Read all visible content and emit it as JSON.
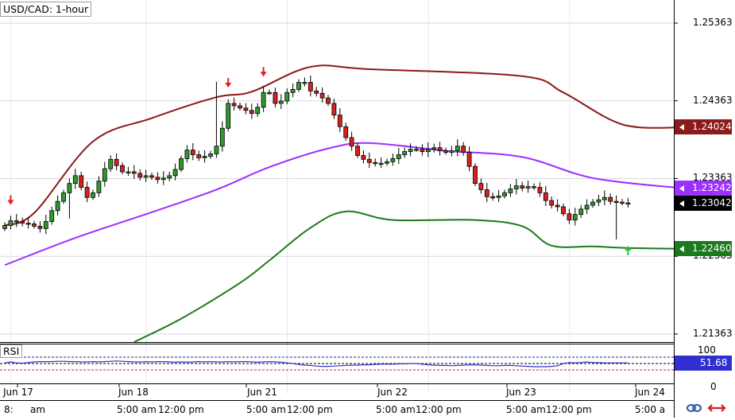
{
  "title": "USD/CAD: 1-hour",
  "rsi_label": "RSI",
  "price_axis": {
    "ticks": [
      "1.25363",
      "1.24363",
      "1.23363",
      "1.22363",
      "1.21363"
    ],
    "tick_values": [
      1.25363,
      1.24363,
      1.23363,
      1.22363,
      1.21363
    ]
  },
  "rsi_axis": {
    "ticks": [
      "100",
      "0"
    ],
    "value_label": "51.68"
  },
  "date_labels": [
    "Jun 17",
    "Jun 18",
    "Jun 21",
    "Jun 22",
    "Jun 23",
    "Jun 24"
  ],
  "time_labels": [
    "8:",
    "am",
    "5:00 am",
    "12:00 pm",
    "5:00 am",
    "12:00 pm",
    "5:00 am",
    "12:00 pm",
    "5:00 am",
    "12:00 pm",
    "5:00 a"
  ],
  "price_tags": [
    {
      "name": "upper-band",
      "label": "1.24024",
      "value": 1.24024,
      "color": "#8b1a1a"
    },
    {
      "name": "middle-band",
      "label": "1.23242",
      "value": 1.23242,
      "color": "#9b30ff"
    },
    {
      "name": "last-price",
      "label": "1.23042",
      "value": 1.23042,
      "color": "#000000"
    },
    {
      "name": "lower-band",
      "label": "1.22460",
      "value": 1.2246,
      "color": "#1b7a1b"
    }
  ],
  "colors": {
    "bull_candle": "#2e9a2e",
    "bear_candle": "#d82020",
    "upper_band": "#8b1a1a",
    "middle_band": "#9b30ff",
    "lower_band": "#1b7a1b",
    "rsi_line": "#3030d0",
    "rsi_levels": "#1a1a8f",
    "rsi_mid": "#d02020",
    "signal_down": "#e02020",
    "signal_up": "#20c040",
    "grid": "#d9d9d9"
  },
  "chart_data": {
    "type": "candlestick",
    "instrument": "USD/CAD",
    "timeframe": "1-hour",
    "ylim": [
      1.2126,
      1.2566
    ],
    "x_axis": [
      "Jun 17",
      "Jun 18",
      "Jun 21",
      "Jun 22",
      "Jun 23",
      "Jun 24"
    ],
    "candle_closes": [
      1.2276,
      1.2282,
      1.2281,
      1.2279,
      1.2278,
      1.2275,
      1.2272,
      1.2281,
      1.2295,
      1.2307,
      1.2318,
      1.233,
      1.234,
      1.2325,
      1.2312,
      1.2318,
      1.2333,
      1.2349,
      1.2361,
      1.2353,
      1.2345,
      1.2345,
      1.2343,
      1.2338,
      1.234,
      1.2338,
      1.2335,
      1.2337,
      1.234,
      1.2348,
      1.2362,
      1.2373,
      1.2367,
      1.2363,
      1.2365,
      1.2368,
      1.2378,
      1.2401,
      1.2433,
      1.243,
      1.2427,
      1.2424,
      1.242,
      1.2428,
      1.2447,
      1.2447,
      1.2433,
      1.2436,
      1.2447,
      1.2451,
      1.246,
      1.246,
      1.2449,
      1.2446,
      1.244,
      1.2433,
      1.2418,
      1.2403,
      1.2389,
      1.2378,
      1.2366,
      1.2361,
      1.2357,
      1.2356,
      1.2356,
      1.2358,
      1.2362,
      1.2367,
      1.2371,
      1.2374,
      1.2374,
      1.2371,
      1.2374,
      1.2376,
      1.2372,
      1.237,
      1.2372,
      1.2378,
      1.237,
      1.2352,
      1.233,
      1.2322,
      1.2313,
      1.2312,
      1.2314,
      1.2318,
      1.2323,
      1.2327,
      1.2324,
      1.2326,
      1.2325,
      1.2318,
      1.2308,
      1.2302,
      1.23,
      1.2291,
      1.2283,
      1.229,
      1.2297,
      1.2302,
      1.2306,
      1.2309,
      1.2312,
      1.2307,
      1.2306,
      1.2305,
      1.2304
    ],
    "upper_band_points": [
      [
        0,
        1.2276
      ],
      [
        5,
        1.2292
      ],
      [
        15,
        1.2384
      ],
      [
        25,
        1.2414
      ],
      [
        36,
        1.2441
      ],
      [
        42,
        1.2448
      ],
      [
        52,
        1.248
      ],
      [
        62,
        1.2477
      ],
      [
        88,
        1.2468
      ],
      [
        95,
        1.2447
      ],
      [
        105,
        1.2406
      ],
      [
        115,
        1.2402
      ]
    ],
    "middle_band_points": [
      [
        0,
        1.2225
      ],
      [
        12,
        1.226
      ],
      [
        25,
        1.2293
      ],
      [
        36,
        1.2322
      ],
      [
        45,
        1.2351
      ],
      [
        55,
        1.2375
      ],
      [
        62,
        1.2382
      ],
      [
        75,
        1.2372
      ],
      [
        88,
        1.2364
      ],
      [
        100,
        1.2337
      ],
      [
        115,
        1.2324
      ]
    ],
    "lower_band_points": [
      [
        22,
        1.2126
      ],
      [
        30,
        1.2156
      ],
      [
        40,
        1.2202
      ],
      [
        45,
        1.2231
      ],
      [
        52,
        1.2273
      ],
      [
        58,
        1.2294
      ],
      [
        66,
        1.2283
      ],
      [
        80,
        1.2283
      ],
      [
        88,
        1.2275
      ],
      [
        93,
        1.225
      ],
      [
        100,
        1.2249
      ],
      [
        106,
        1.2247
      ],
      [
        115,
        1.2246
      ]
    ],
    "last_price": 1.23042,
    "upper_band_last": 1.24024,
    "middle_band_last": 1.23242,
    "lower_band_last": 1.2246,
    "signals": [
      {
        "type": "sell",
        "candle": 1
      },
      {
        "type": "sell",
        "candle": 38
      },
      {
        "type": "sell",
        "candle": 44
      },
      {
        "type": "buy",
        "candle": 106
      }
    ],
    "rsi": {
      "ylim": [
        0,
        100
      ],
      "levels": [
        70,
        50,
        30
      ],
      "last": 51.68,
      "values": [
        52,
        55,
        52,
        51,
        53,
        55,
        56,
        56,
        56,
        57,
        57,
        56,
        56,
        55,
        55,
        56,
        55,
        56,
        57,
        58,
        57,
        56,
        55,
        55,
        56,
        55,
        56,
        56,
        55,
        54,
        55,
        54,
        55,
        56,
        55,
        56,
        55,
        55,
        56,
        55,
        56,
        56,
        55,
        54,
        55,
        56,
        55,
        54,
        52,
        50,
        47,
        45,
        44,
        42,
        41,
        41,
        42,
        43,
        44,
        45,
        45,
        46,
        46,
        47,
        48,
        48,
        48,
        49,
        49,
        50,
        50,
        48,
        46,
        45,
        44,
        44,
        43,
        44,
        45,
        46,
        46,
        45,
        44,
        43,
        43,
        44,
        44,
        43,
        42,
        41,
        40,
        40,
        40,
        41,
        43,
        50,
        53,
        52,
        53,
        55,
        53,
        53,
        52,
        52,
        52,
        52,
        51.68
      ]
    }
  }
}
